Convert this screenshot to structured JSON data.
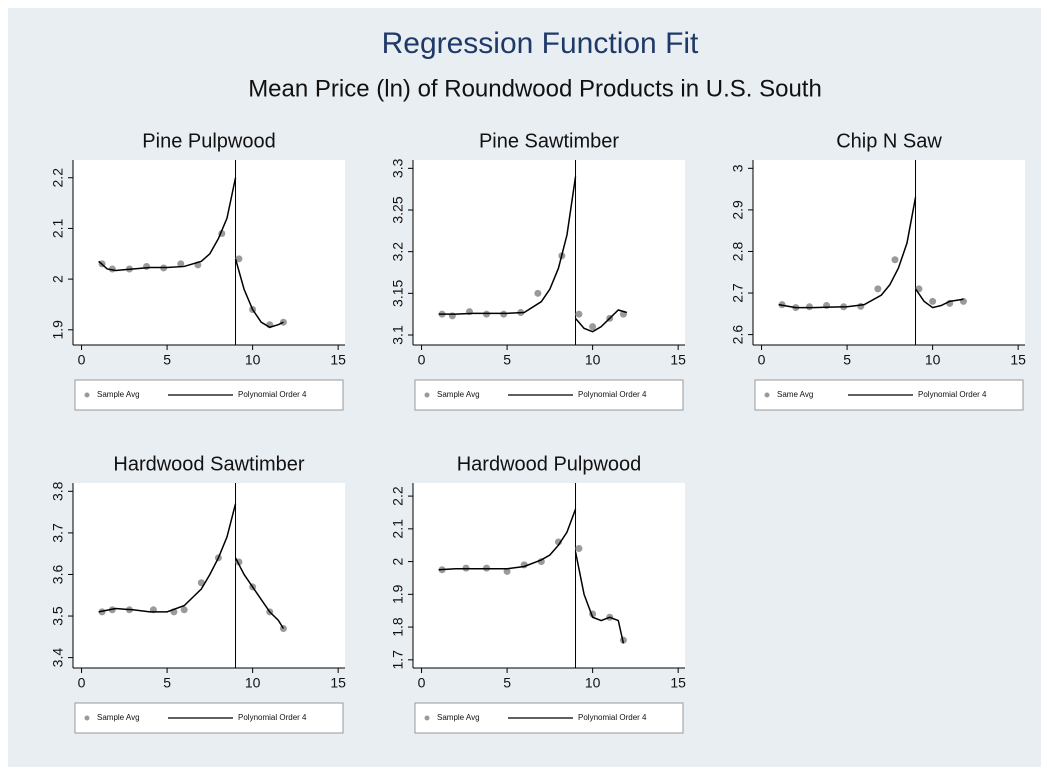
{
  "title": "Regression Function Fit",
  "subtitle": "Mean Price (ln) of Roundwood Products in U.S. South",
  "chart_data": [
    {
      "type": "scatter",
      "title": "Pine Pulpwood",
      "xlim": [
        -0.5,
        15.4
      ],
      "xticks": [
        0,
        5,
        10,
        15
      ],
      "ylim": [
        1.87,
        2.235
      ],
      "yticks": [
        1.9,
        2,
        2.1,
        2.2
      ],
      "xline": 9,
      "series": [
        {
          "name": "Sample Avg",
          "type": "scatter",
          "color": "#9a9a9a",
          "x": [
            1.2,
            1.8,
            2.8,
            3.8,
            4.8,
            5.8,
            6.8,
            8.2,
            9.2,
            10,
            11,
            11.8
          ],
          "values": [
            2.03,
            2.02,
            2.02,
            2.025,
            2.022,
            2.03,
            2.028,
            2.09,
            2.04,
            1.94,
            1.91,
            1.915
          ]
        },
        {
          "name": "Polynomial Order 4",
          "type": "line",
          "color": "#000000",
          "x": [
            1,
            1.5,
            2,
            3,
            4,
            5,
            6,
            7,
            7.5,
            8,
            8.5,
            9,
            9,
            9,
            9.5,
            10,
            10.5,
            11,
            11.5,
            11.8
          ],
          "values": [
            2.035,
            2.02,
            2.017,
            2.02,
            2.023,
            2.023,
            2.025,
            2.035,
            2.05,
            2.08,
            2.12,
            2.2,
            null,
            2.04,
            1.98,
            1.94,
            1.915,
            1.905,
            1.91,
            1.915
          ]
        }
      ]
    },
    {
      "type": "scatter",
      "title": "Pine Sawtimber",
      "xlim": [
        -0.5,
        15.4
      ],
      "xticks": [
        0,
        5,
        10,
        15
      ],
      "ylim": [
        3.088,
        3.31
      ],
      "yticks": [
        3.1,
        3.15,
        3.2,
        3.25,
        3.3
      ],
      "xline": 9,
      "series": [
        {
          "name": "Sample Avg",
          "type": "scatter",
          "color": "#9a9a9a",
          "x": [
            1.2,
            1.8,
            2.8,
            3.8,
            4.8,
            5.8,
            6.8,
            8.2,
            9.2,
            10,
            11,
            11.8
          ],
          "values": [
            3.125,
            3.123,
            3.128,
            3.125,
            3.125,
            3.127,
            3.15,
            3.195,
            3.125,
            3.11,
            3.12,
            3.125
          ]
        },
        {
          "name": "Polynomial Order 4",
          "type": "line",
          "color": "#000000",
          "x": [
            1,
            2,
            3,
            4,
            5,
            6,
            7,
            7.5,
            8,
            8.5,
            9,
            9,
            9,
            9.5,
            10,
            10.5,
            11,
            11.5,
            12
          ],
          "values": [
            3.125,
            3.125,
            3.126,
            3.126,
            3.126,
            3.127,
            3.14,
            3.155,
            3.18,
            3.22,
            3.29,
            null,
            3.12,
            3.108,
            3.104,
            3.11,
            3.12,
            3.13,
            3.127
          ]
        }
      ]
    },
    {
      "type": "scatter",
      "title": "Chip N Saw",
      "xlim": [
        -0.5,
        15.4
      ],
      "xticks": [
        0,
        5,
        10,
        15
      ],
      "ylim": [
        2.575,
        3.02
      ],
      "yticks": [
        2.6,
        2.7,
        2.8,
        2.9,
        3
      ],
      "xline": 9,
      "series": [
        {
          "name": "Same Avg",
          "type": "scatter",
          "color": "#9a9a9a",
          "x": [
            1.2,
            2,
            2.8,
            3.8,
            4.8,
            5.8,
            6.8,
            7.8,
            9.2,
            10,
            11,
            11.8
          ],
          "values": [
            2.672,
            2.665,
            2.667,
            2.67,
            2.667,
            2.668,
            2.71,
            2.78,
            2.71,
            2.68,
            2.675,
            2.68
          ]
        },
        {
          "name": "Polynomial Order 4",
          "type": "line",
          "color": "#000000",
          "x": [
            1,
            2,
            3,
            4,
            5,
            6,
            7,
            7.5,
            8,
            8.5,
            9,
            9,
            9,
            9.5,
            10,
            10.5,
            11,
            11.8
          ],
          "values": [
            2.672,
            2.665,
            2.665,
            2.666,
            2.667,
            2.672,
            2.695,
            2.72,
            2.76,
            2.82,
            2.93,
            null,
            2.71,
            2.68,
            2.665,
            2.67,
            2.68,
            2.685
          ]
        }
      ]
    },
    {
      "type": "scatter",
      "title": "Hardwood Sawtimber",
      "xlim": [
        -0.5,
        15.4
      ],
      "xticks": [
        0,
        5,
        10,
        15
      ],
      "ylim": [
        3.375,
        3.82
      ],
      "yticks": [
        3.4,
        3.5,
        3.6,
        3.7,
        3.8
      ],
      "xline": 9,
      "series": [
        {
          "name": "Sample Avg",
          "type": "scatter",
          "color": "#9a9a9a",
          "x": [
            1.2,
            1.8,
            2.8,
            4.2,
            5.4,
            6,
            7,
            8,
            9.2,
            10,
            11,
            11.8
          ],
          "values": [
            3.51,
            3.515,
            3.515,
            3.515,
            3.51,
            3.515,
            3.58,
            3.64,
            3.63,
            3.57,
            3.51,
            3.47
          ]
        },
        {
          "name": "Polynomial Order 4",
          "type": "line",
          "color": "#000000",
          "x": [
            1,
            2,
            3,
            4,
            5,
            6,
            7,
            7.5,
            8,
            8.5,
            9,
            9,
            9,
            9.5,
            10,
            10.5,
            11,
            11.5,
            11.8
          ],
          "values": [
            3.51,
            3.518,
            3.515,
            3.51,
            3.51,
            3.525,
            3.565,
            3.6,
            3.64,
            3.69,
            3.77,
            null,
            3.64,
            3.6,
            3.57,
            3.54,
            3.51,
            3.49,
            3.47
          ]
        }
      ]
    },
    {
      "type": "scatter",
      "title": "Hardwood Pulpwood",
      "xlim": [
        -0.5,
        15.4
      ],
      "xticks": [
        0,
        5,
        10,
        15
      ],
      "ylim": [
        1.675,
        2.24
      ],
      "yticks": [
        1.7,
        1.8,
        1.9,
        2,
        2.1,
        2.2
      ],
      "xline": 9,
      "series": [
        {
          "name": "Sample Avg",
          "type": "scatter",
          "color": "#9a9a9a",
          "x": [
            1.2,
            2.6,
            3.8,
            5,
            6,
            7,
            8,
            9.2,
            10,
            11,
            11.8
          ],
          "values": [
            1.975,
            1.98,
            1.98,
            1.97,
            1.99,
            2.0,
            2.06,
            2.04,
            1.84,
            1.83,
            1.76
          ]
        },
        {
          "name": "Polynomial Order 4",
          "type": "line",
          "color": "#000000",
          "x": [
            1,
            2,
            3,
            4,
            5,
            6,
            7,
            7.5,
            8,
            8.5,
            9,
            9,
            9,
            9.5,
            10,
            10.5,
            11,
            11.5,
            11.8
          ],
          "values": [
            1.975,
            1.978,
            1.978,
            1.978,
            1.978,
            1.985,
            2.005,
            2.02,
            2.05,
            2.09,
            2.16,
            null,
            2.03,
            1.9,
            1.83,
            1.82,
            1.83,
            1.82,
            1.75
          ]
        }
      ]
    }
  ]
}
